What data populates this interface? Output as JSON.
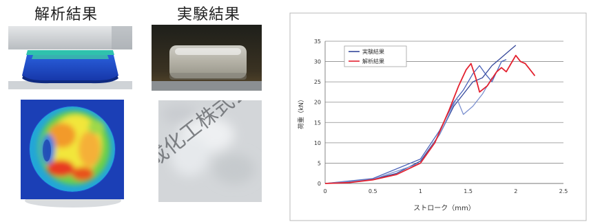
{
  "panels": {
    "analysis_title": "解析結果",
    "experiment_title": "実験結果",
    "watermark": "成化工株式会"
  },
  "chart_data": {
    "type": "line",
    "title": "",
    "xlabel": "ストローク（mm）",
    "ylabel": "荷重（kN）",
    "xlim": [
      0,
      2.5
    ],
    "ylim": [
      0,
      35
    ],
    "xticks": [
      0,
      0.5,
      1,
      1.5,
      2,
      2.5
    ],
    "yticks": [
      0,
      5,
      10,
      15,
      20,
      25,
      30,
      35
    ],
    "grid": "horizontal",
    "legend": "top-left",
    "series": [
      {
        "name": "実験結果",
        "color": "#34479a",
        "x": [
          0,
          0.25,
          0.5,
          0.75,
          1.0,
          1.2,
          1.35,
          1.45,
          1.55,
          1.65,
          1.75,
          1.85,
          1.95,
          2.0
        ],
        "y": [
          0,
          0.3,
          1.0,
          2.5,
          5.5,
          12,
          19,
          22,
          25,
          26,
          29,
          31,
          33,
          34
        ]
      },
      {
        "color": "#4a62b8",
        "x": [
          0,
          0.5,
          1.0,
          1.2,
          1.35,
          1.45,
          1.55,
          1.62,
          1.68,
          1.75,
          1.85,
          1.9
        ],
        "y": [
          0,
          1.2,
          6,
          13,
          20,
          23,
          27,
          29,
          27,
          25,
          30,
          30.5
        ]
      },
      {
        "color": "#7b90cf",
        "x": [
          0,
          0.5,
          1.0,
          1.2,
          1.32,
          1.38,
          1.45,
          1.55,
          1.65,
          1.75
        ],
        "y": [
          0,
          1.0,
          5,
          12,
          18,
          21,
          17,
          19,
          22,
          26
        ]
      },
      {
        "name": "解析結果",
        "color": "#e3202e",
        "x": [
          0,
          0.25,
          0.5,
          0.75,
          1.0,
          1.15,
          1.3,
          1.4,
          1.48,
          1.53,
          1.58,
          1.62,
          1.7,
          1.8,
          1.85,
          1.9,
          1.95,
          2.0,
          2.05,
          2.1,
          2.15,
          2.2
        ],
        "y": [
          0,
          0.2,
          0.9,
          2.2,
          5,
          10,
          18,
          24,
          28,
          29.5,
          26,
          22.5,
          24,
          27.5,
          28.5,
          27.5,
          29.5,
          31.5,
          30,
          29.5,
          28,
          26.5
        ]
      }
    ]
  }
}
